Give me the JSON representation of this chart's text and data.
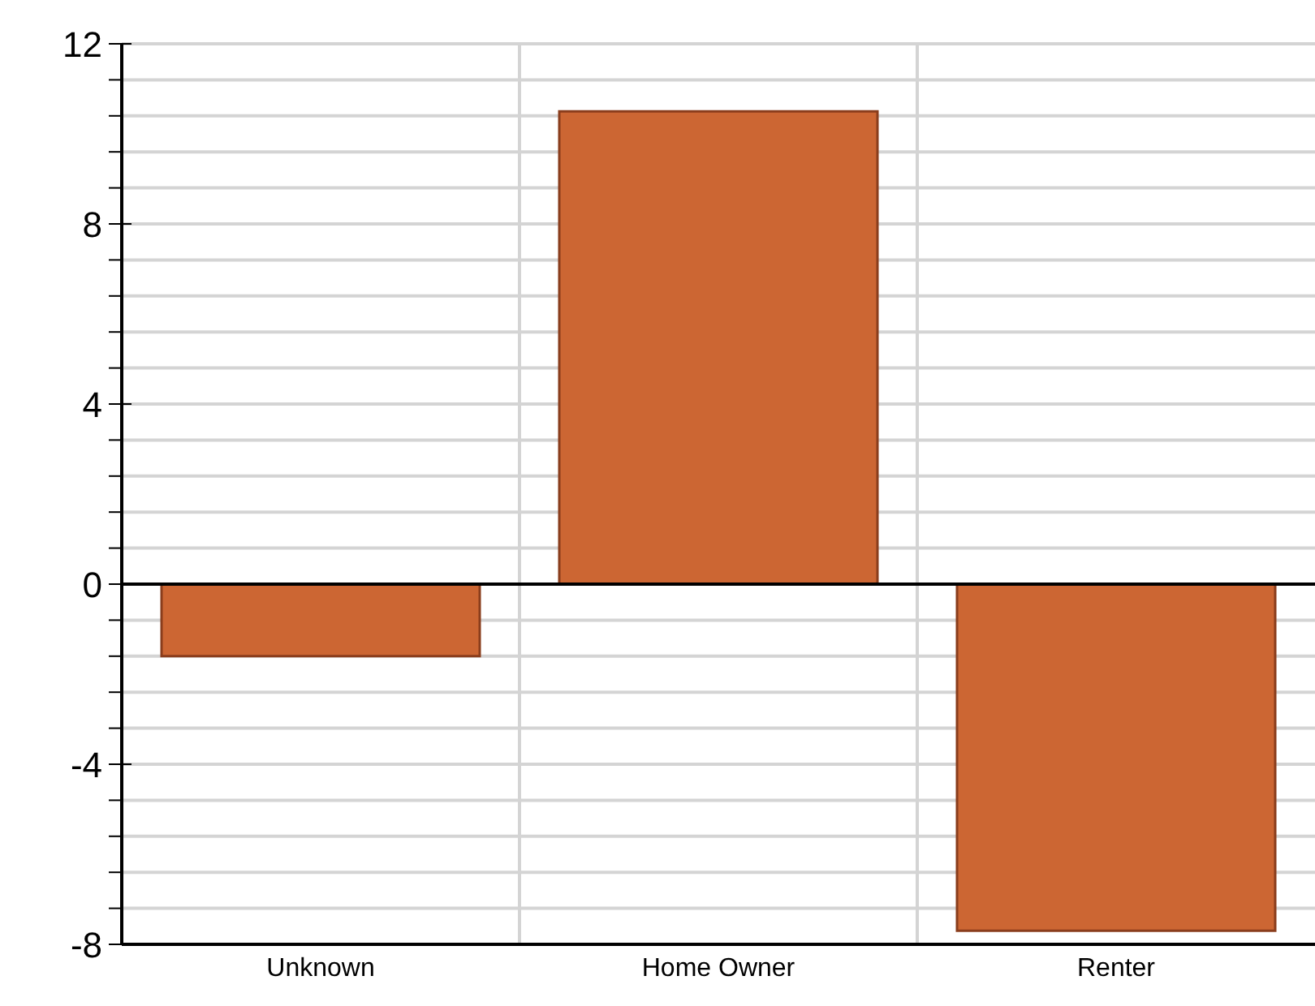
{
  "chart_data": {
    "type": "bar",
    "categories": [
      "Unknown",
      "Home Owner",
      "Renter"
    ],
    "values": [
      -1.6,
      10.5,
      -7.7
    ],
    "color": "#cc6633",
    "ylim": [
      -8,
      12
    ],
    "yticks": [
      -8,
      {
        "value": -7.2,
        "label": null
      },
      {
        "value": -6.4,
        "label": null
      },
      {
        "value": -5.6,
        "label": null
      },
      {
        "value": -4.8,
        "label": null
      },
      -4,
      {
        "value": -3.2,
        "label": null
      },
      {
        "value": -2.4,
        "label": null
      },
      {
        "value": -1.6,
        "label": null
      },
      {
        "value": -0.8,
        "label": null
      },
      0,
      {
        "value": 0.8,
        "label": null
      },
      {
        "value": 1.6,
        "label": null
      },
      {
        "value": 2.4,
        "label": null
      },
      {
        "value": 3.2,
        "label": null
      },
      4,
      {
        "value": 4.8,
        "label": null
      },
      {
        "value": 5.6,
        "label": null
      },
      {
        "value": 6.4,
        "label": null
      },
      {
        "value": 7.2,
        "label": null
      },
      8,
      {
        "value": 8.8,
        "label": null
      },
      {
        "value": 9.6,
        "label": null
      },
      {
        "value": 10.4,
        "label": null
      },
      {
        "value": 11.2,
        "label": null
      },
      12
    ],
    "grid": true,
    "ref_lines": [
      {
        "axis": "y",
        "value": 0,
        "color": "#000000"
      }
    ]
  }
}
